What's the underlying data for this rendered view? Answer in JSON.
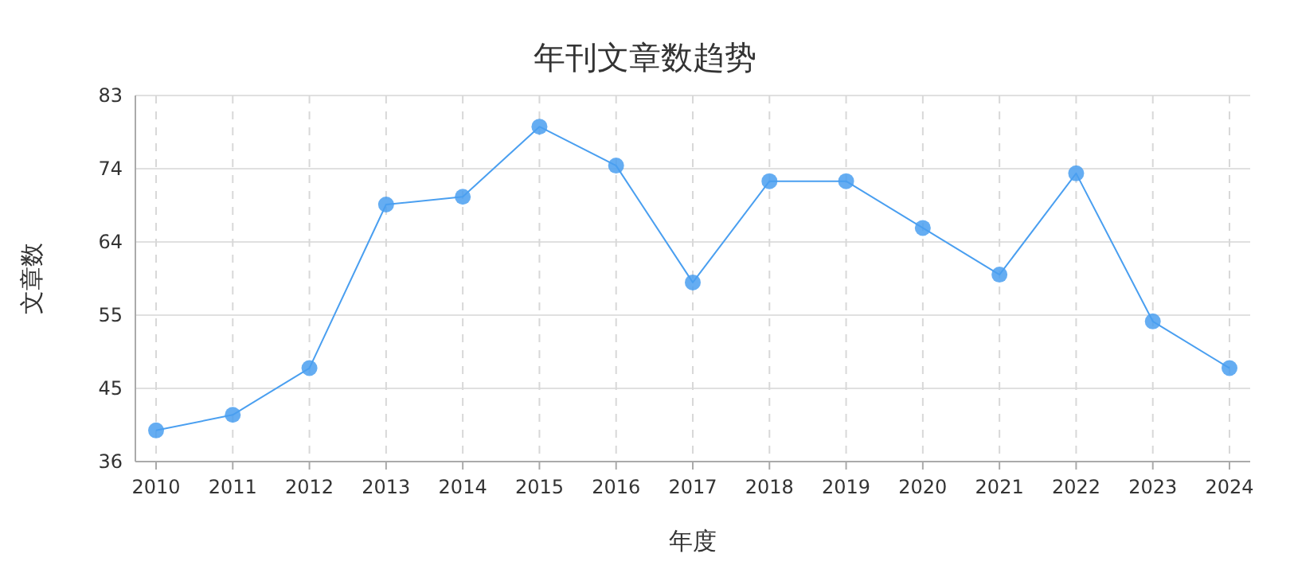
{
  "chart_data": {
    "type": "line",
    "title": "年刊文章数趋势",
    "xlabel": "年度",
    "ylabel": "文章数",
    "categories": [
      "2010",
      "2011",
      "2012",
      "2013",
      "2014",
      "2015",
      "2016",
      "2017",
      "2018",
      "2019",
      "2020",
      "2021",
      "2022",
      "2023",
      "2024"
    ],
    "series": [
      {
        "color": "#4a9ff0",
        "values": [
          40,
          42,
          48,
          69,
          70,
          79,
          74,
          59,
          72,
          72,
          66,
          60,
          73,
          54,
          48
        ]
      }
    ],
    "ylim": [
      36,
      83
    ],
    "yticks": [
      36,
      {
        "value": 45.4,
        "label": "45"
      },
      {
        "value": 54.8,
        "label": "55"
      },
      {
        "value": 64.2,
        "label": "64"
      },
      {
        "value": 73.6,
        "label": "74"
      },
      83
    ],
    "grid": true,
    "marker": "circle",
    "line_style": "solid"
  }
}
